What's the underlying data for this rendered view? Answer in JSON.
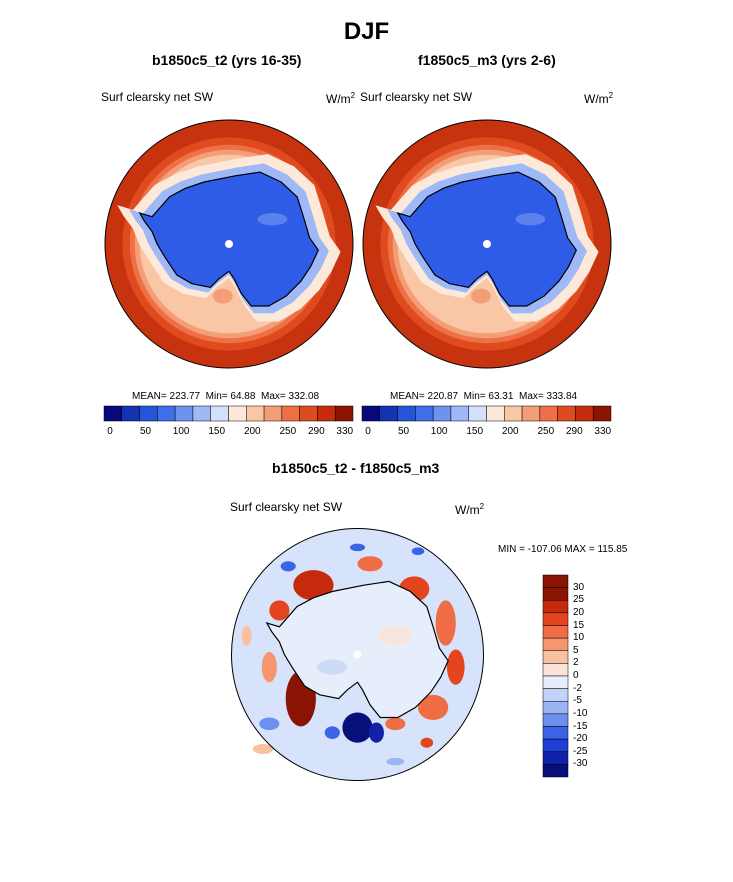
{
  "title": "DJF",
  "panels": [
    {
      "case_title": "b1850c5_t2 (yrs 16-35)",
      "variable": "Surf clearsky net SW",
      "units_base": "W/m",
      "units_exp": "2",
      "stats": {
        "mean_label": "MEAN=",
        "mean": "223.77",
        "min_label": "Min=",
        "min": "64.88",
        "max_label": "Max=",
        "max": "332.08"
      }
    },
    {
      "case_title": "f1850c5_m3 (yrs 2-6)",
      "variable": "Surf clearsky net SW",
      "units_base": "W/m",
      "units_exp": "2",
      "stats": {
        "mean_label": "MEAN=",
        "mean": "220.87",
        "min_label": "Min=",
        "min": "63.31",
        "max_label": "Max=",
        "max": "333.84"
      }
    }
  ],
  "diff": {
    "title": "b1850c5_t2 - f1850c5_m3",
    "variable": "Surf clearsky net SW",
    "units_base": "W/m",
    "units_exp": "2",
    "minmax": "MIN = -107.06 MAX = 115.85"
  },
  "colors": {
    "abs_scale": [
      "#08087a",
      "#1433b0",
      "#2255d8",
      "#3f6ee8",
      "#6d92f0",
      "#9fb9f6",
      "#d4e0fb",
      "#fde9d9",
      "#f9c6a6",
      "#f49e77",
      "#ee7045",
      "#df4a1e",
      "#c42c0c",
      "#8c1404"
    ],
    "diff_scale": [
      "#070f7a",
      "#1122a8",
      "#1d3fd4",
      "#3b63e6",
      "#6d8ff0",
      "#9bb5f4",
      "#c2d3f8",
      "#e7eefb",
      "#fbe3d6",
      "#f9c0a2",
      "#f59670",
      "#ef6c44",
      "#e4451e",
      "#c62a0c",
      "#8a1404"
    ],
    "land_blue": "#2f5ce6",
    "ocean_red": "#c8330f",
    "diff_base": "#d6e3fb",
    "coast": "#000000"
  },
  "chart_data": [
    {
      "type": "heatmap",
      "title": "b1850c5_t2 (yrs 16-35)",
      "subtitle": "Surf clearsky net SW",
      "units": "W/m2",
      "projection": "south polar stereographic",
      "colorbar_levels": [
        0,
        50,
        100,
        150,
        200,
        250,
        290,
        330
      ],
      "colorbar_ticks": [
        "0",
        "50",
        "100",
        "150",
        "200",
        "250",
        "290",
        "330"
      ],
      "mean": 223.77,
      "min": 64.88,
      "max": 332.08
    },
    {
      "type": "heatmap",
      "title": "f1850c5_m3 (yrs 2-6)",
      "subtitle": "Surf clearsky net SW",
      "units": "W/m2",
      "projection": "south polar stereographic",
      "colorbar_levels": [
        0,
        50,
        100,
        150,
        200,
        250,
        290,
        330
      ],
      "colorbar_ticks": [
        "0",
        "50",
        "100",
        "150",
        "200",
        "250",
        "290",
        "330"
      ],
      "mean": 220.87,
      "min": 63.31,
      "max": 333.84
    },
    {
      "type": "heatmap",
      "title": "b1850c5_t2 - f1850c5_m3",
      "subtitle": "Surf clearsky net SW",
      "units": "W/m2",
      "projection": "south polar stereographic",
      "colorbar_labels": [
        "30",
        "25",
        "20",
        "15",
        "10",
        "5",
        "2",
        "0",
        "-2",
        "-5",
        "-10",
        "-15",
        "-20",
        "-25",
        "-30"
      ],
      "min": -107.06,
      "max": 115.85
    }
  ]
}
